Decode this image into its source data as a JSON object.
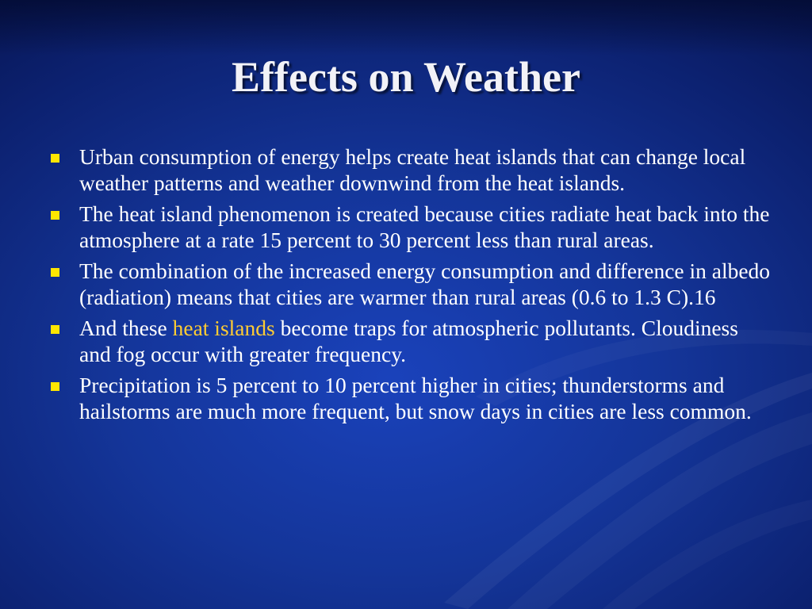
{
  "slide": {
    "title": "Effects on Weather",
    "bullets": [
      {
        "text": "Urban consumption of energy helps create heat islands that can change local weather patterns and weather downwind from the heat islands."
      },
      {
        "text": "The heat island phenomenon is created because cities radiate heat back into the atmosphere at a rate 15 percent to 30 percent less than rural areas."
      },
      {
        "text": "The combination of the increased energy consumption and difference in albedo (radiation) means that cities are warmer than rural areas (0.6 to 1.3 C).16"
      },
      {
        "before": "And these ",
        "highlight": "heat islands",
        "after": " become traps for atmospheric pollutants. Cloudiness and fog occur with greater frequency."
      },
      {
        "text": "Precipitation is 5 percent to 10 percent higher in cities; thunderstorms and hailstorms are much more frequent, but snow days in cities are less common."
      }
    ]
  },
  "colors": {
    "background": "#143599",
    "bullet_marker": "#ffe600",
    "highlight_text": "#ffcc33",
    "body_text": "#ffffff"
  },
  "icons": {
    "bullet": "square-bullet-icon"
  }
}
